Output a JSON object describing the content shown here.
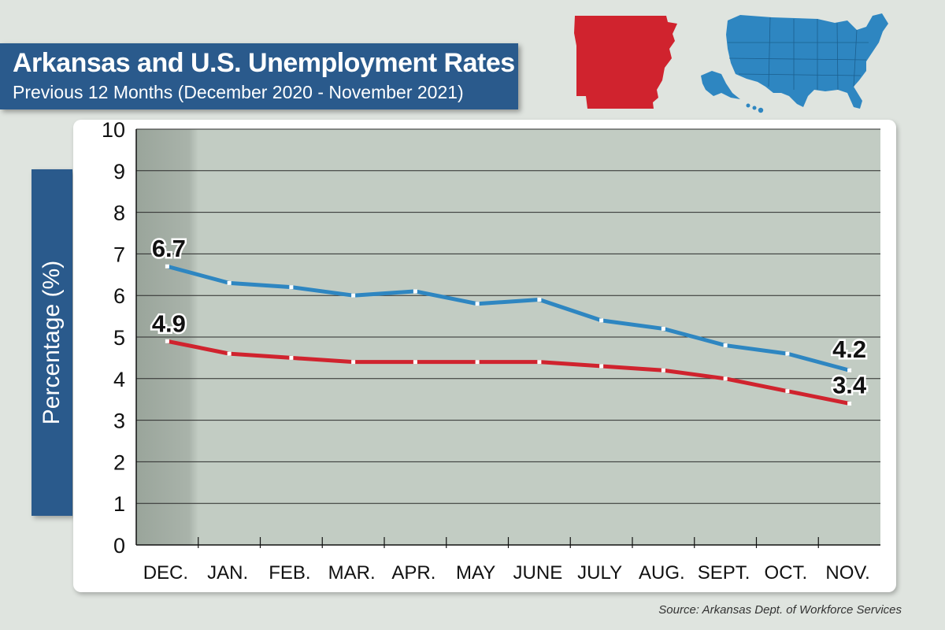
{
  "title": "Arkansas and U.S. Unemployment Rates",
  "subtitle": "Previous 12 Months (December 2020 - November 2021)",
  "source": "Source: Arkansas Dept. of Workforce Services",
  "colors": {
    "us": "#2e86c1",
    "arkansas": "#d0232e",
    "accent": "#2a5a8c"
  },
  "icons": {
    "arkansas_map": "arkansas-map-icon",
    "us_map": "us-map-icon"
  },
  "chart_data": {
    "type": "line",
    "title": "Arkansas and U.S. Unemployment Rates",
    "subtitle": "Previous 12 Months (December 2020 - November 2021)",
    "xlabel": "",
    "ylabel": "Percentage (%)",
    "ylim": [
      0,
      10
    ],
    "yticks": [
      "0",
      "1",
      "2",
      "3",
      "4",
      "5",
      "6",
      "7",
      "8",
      "9",
      "10"
    ],
    "grid": true,
    "categories": [
      "DEC.",
      "JAN.",
      "FEB.",
      "MAR.",
      "APR.",
      "MAY",
      "JUNE",
      "JULY",
      "AUG.",
      "SEPT.",
      "OCT.",
      "NOV."
    ],
    "series": [
      {
        "values": [
          6.7,
          6.3,
          6.2,
          6.0,
          6.1,
          5.8,
          5.9,
          5.4,
          5.2,
          4.8,
          4.6,
          4.2
        ],
        "color": "#2e86c1"
      },
      {
        "values": [
          4.9,
          4.6,
          4.5,
          4.4,
          4.4,
          4.4,
          4.4,
          4.3,
          4.2,
          4.0,
          3.7,
          3.4
        ],
        "color": "#d0232e"
      }
    ],
    "annotations": [
      "6.7",
      "4.9",
      "4.2",
      "3.4"
    ]
  }
}
